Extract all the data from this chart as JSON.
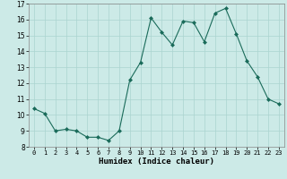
{
  "x": [
    0,
    1,
    2,
    3,
    4,
    5,
    6,
    7,
    8,
    9,
    10,
    11,
    12,
    13,
    14,
    15,
    16,
    17,
    18,
    19,
    20,
    21,
    22,
    23
  ],
  "y": [
    10.4,
    10.1,
    9.0,
    9.1,
    9.0,
    8.6,
    8.6,
    8.4,
    9.0,
    12.2,
    13.3,
    16.1,
    15.2,
    14.4,
    15.9,
    15.8,
    14.6,
    16.4,
    16.7,
    15.1,
    13.4,
    12.4,
    11.0,
    10.7
  ],
  "line_color": "#1a6b5a",
  "marker": "D",
  "marker_size": 2,
  "bg_color": "#cceae7",
  "grid_color": "#aad4d0",
  "xlabel": "Humidex (Indice chaleur)",
  "ylim": [
    8,
    17
  ],
  "xlim": [
    -0.5,
    23.5
  ],
  "yticks": [
    8,
    9,
    10,
    11,
    12,
    13,
    14,
    15,
    16,
    17
  ],
  "xticks": [
    0,
    1,
    2,
    3,
    4,
    5,
    6,
    7,
    8,
    9,
    10,
    11,
    12,
    13,
    14,
    15,
    16,
    17,
    18,
    19,
    20,
    21,
    22,
    23
  ]
}
